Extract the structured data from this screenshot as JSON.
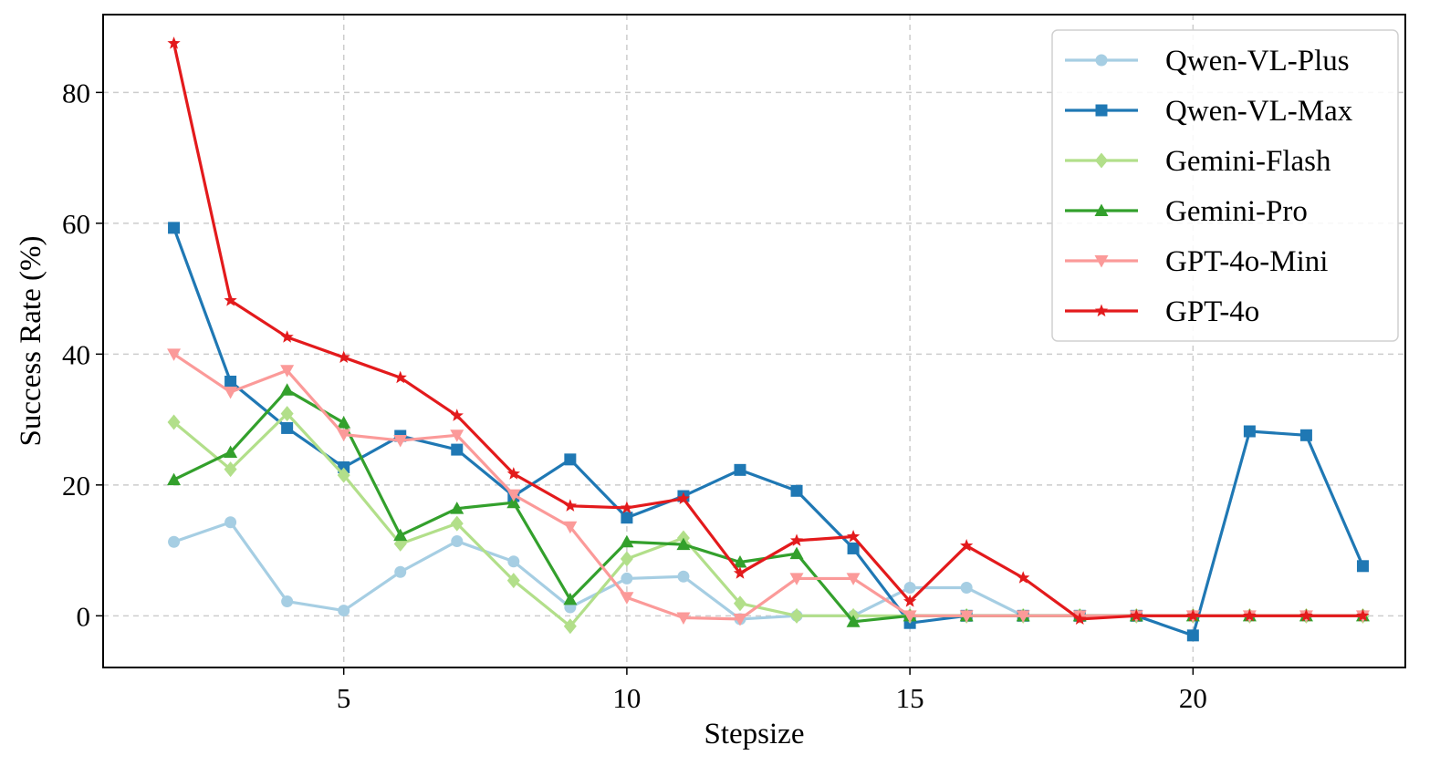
{
  "chart_data": {
    "type": "line",
    "title": "",
    "xlabel": "Stepsize",
    "ylabel": "Success Rate (%)",
    "xlim": [
      0.75,
      23.75
    ],
    "ylim": [
      -7.9,
      91.9
    ],
    "xticks": [
      5,
      10,
      15,
      20
    ],
    "yticks": [
      0,
      20,
      40,
      60,
      80
    ],
    "grid": true,
    "legend_position": "top-right",
    "x": [
      2,
      3,
      4,
      5,
      6,
      7,
      8,
      9,
      10,
      11,
      12,
      13,
      14,
      15,
      16,
      17,
      18,
      19,
      20,
      21,
      22,
      23
    ],
    "series": [
      {
        "name": "Qwen-VL-Plus",
        "color": "#a6cee3",
        "marker": "circle",
        "values": [
          11.3,
          14.3,
          2.2,
          0.8,
          6.7,
          11.4,
          8.3,
          1.3,
          5.7,
          6.0,
          -0.5,
          0.0,
          0.0,
          4.3,
          4.3,
          0.0,
          0.0,
          0.0,
          0.0,
          0.0,
          0.0,
          0.0
        ]
      },
      {
        "name": "Qwen-VL-Max",
        "color": "#1f78b4",
        "marker": "square",
        "values": [
          59.3,
          35.8,
          28.7,
          22.7,
          27.5,
          25.4,
          18.3,
          23.9,
          15.0,
          18.3,
          22.3,
          19.1,
          10.3,
          -1.1,
          0.0,
          0.0,
          0.0,
          0.0,
          -3.0,
          28.2,
          27.6,
          7.6
        ]
      },
      {
        "name": "Gemini-Flash",
        "color": "#b2df8a",
        "marker": "diamond",
        "values": [
          29.6,
          22.4,
          30.9,
          21.5,
          11.0,
          14.1,
          5.4,
          -1.6,
          8.7,
          11.9,
          1.9,
          0.0,
          0.0,
          0.0,
          0.0,
          0.0,
          0.0,
          0.0,
          0.0,
          0.0,
          0.0,
          0.0
        ]
      },
      {
        "name": "Gemini-Pro",
        "color": "#33a02c",
        "marker": "triangle-up",
        "values": [
          20.8,
          25.0,
          34.5,
          29.5,
          12.3,
          16.4,
          17.3,
          2.5,
          11.3,
          10.9,
          8.2,
          9.5,
          -0.9,
          0.0,
          0.0,
          0.0,
          0.0,
          0.0,
          0.0,
          0.0,
          0.0,
          0.0
        ]
      },
      {
        "name": "GPT-4o-Mini",
        "color": "#fb9a99",
        "marker": "triangle-down",
        "values": [
          40.0,
          34.2,
          37.5,
          27.7,
          26.8,
          27.6,
          18.5,
          13.6,
          2.8,
          -0.3,
          -0.5,
          5.7,
          5.7,
          0.0,
          0.0,
          0.0,
          0.0,
          0.0,
          0.0,
          0.0,
          0.0,
          0.0
        ]
      },
      {
        "name": "GPT-4o",
        "color": "#e31a1c",
        "marker": "star",
        "values": [
          87.5,
          48.2,
          42.6,
          39.5,
          36.4,
          30.6,
          21.7,
          16.8,
          16.5,
          17.9,
          6.5,
          11.5,
          12.1,
          2.2,
          10.7,
          5.8,
          -0.5,
          0.0,
          0.0,
          0.0,
          0.0,
          0.0
        ]
      }
    ]
  }
}
